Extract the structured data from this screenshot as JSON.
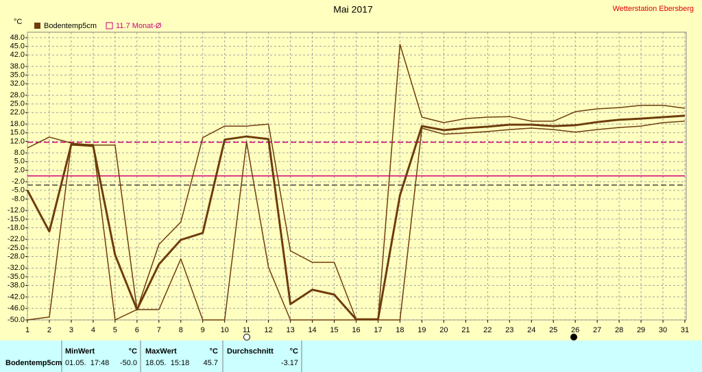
{
  "chart_data": {
    "type": "line",
    "title": "Mai 2017",
    "station": "Wetterstation Ebersberg",
    "y_label": "°C",
    "x": [
      1,
      2,
      3,
      4,
      5,
      6,
      7,
      8,
      9,
      10,
      11,
      12,
      13,
      14,
      15,
      16,
      17,
      18,
      19,
      20,
      21,
      22,
      23,
      24,
      25,
      26,
      27,
      28,
      29,
      30,
      31
    ],
    "xlim": [
      1,
      31
    ],
    "xticks": [
      1,
      2,
      3,
      4,
      5,
      6,
      7,
      8,
      9,
      10,
      11,
      12,
      13,
      14,
      15,
      16,
      17,
      18,
      19,
      20,
      21,
      22,
      23,
      24,
      25,
      26,
      27,
      28,
      29,
      30,
      31
    ],
    "ylim": [
      -50,
      48
    ],
    "yticks": [
      {
        "value": -50,
        "label": "-50.0"
      },
      {
        "value": -46,
        "label": "-46.0"
      },
      {
        "value": -42,
        "label": "-42.0"
      },
      {
        "value": -38,
        "label": "-38.0"
      },
      {
        "value": -35,
        "label": "-35.0"
      },
      {
        "value": -32,
        "label": "-32.0"
      },
      {
        "value": -28,
        "label": "-28.0"
      },
      {
        "value": -25,
        "label": "-25.0"
      },
      {
        "value": -22,
        "label": "-22.0"
      },
      {
        "value": -18,
        "label": "-18.0"
      },
      {
        "value": -15,
        "label": "-15.0"
      },
      {
        "value": -12,
        "label": "-12.0"
      },
      {
        "value": -8,
        "label": "-8.0"
      },
      {
        "value": -5,
        "label": "-5.0"
      },
      {
        "value": -2,
        "label": "-2.0"
      },
      {
        "value": 2,
        "label": "2.0"
      },
      {
        "value": 5,
        "label": "5.0"
      },
      {
        "value": 8,
        "label": "8.0"
      },
      {
        "value": 12,
        "label": "12.0"
      },
      {
        "value": 15,
        "label": "15.0"
      },
      {
        "value": 18,
        "label": "18.0"
      },
      {
        "value": 22,
        "label": "22.0"
      },
      {
        "value": 25,
        "label": "25.0"
      },
      {
        "value": 28,
        "label": "28.0"
      },
      {
        "value": 32,
        "label": "32.0"
      },
      {
        "value": 35,
        "label": "35.0"
      },
      {
        "value": 38,
        "label": "38.0"
      },
      {
        "value": 42,
        "label": "42.0"
      },
      {
        "value": 45,
        "label": "45.0"
      },
      {
        "value": 48,
        "label": "48.0"
      }
    ],
    "grid": true,
    "series": [
      {
        "name": "Bodentemp5cm",
        "color": "#6e3b0c",
        "line_width": 3,
        "values": [
          -5.0,
          -19.3,
          10.9,
          10.4,
          -27.4,
          -46.4,
          -30.7,
          -22.2,
          -19.8,
          12.6,
          13.7,
          12.8,
          -44.5,
          -39.5,
          -41.2,
          -49.8,
          -49.8,
          -6.7,
          17.3,
          15.9,
          16.6,
          17.1,
          17.8,
          17.8,
          17.3,
          17.6,
          18.7,
          19.5,
          19.9,
          20.4,
          20.9
        ]
      },
      {
        "color": "#6e3b0c",
        "line_width": 1.5,
        "values": [
          9.7,
          13.5,
          11.4,
          10.7,
          10.7,
          -46.4,
          -23.8,
          -16.0,
          13.3,
          17.3,
          17.3,
          18.0,
          -26.0,
          -30.0,
          -30.0,
          -49.8,
          -49.8,
          45.7,
          20.4,
          18.5,
          19.9,
          20.4,
          20.6,
          19.0,
          19.0,
          22.3,
          23.3,
          23.7,
          24.5,
          24.5,
          23.5
        ]
      },
      {
        "color": "#6e3b0c",
        "line_width": 1.5,
        "values": [
          -50.0,
          -49.0,
          10.9,
          10.9,
          -50.0,
          -46.4,
          -46.4,
          -28.8,
          -50.0,
          -50.0,
          11.8,
          -31.7,
          -50.0,
          -50.0,
          -50.0,
          -50.0,
          -50.0,
          -50.0,
          16.6,
          14.5,
          14.9,
          15.4,
          16.1,
          16.6,
          16.1,
          15.2,
          16.1,
          16.8,
          17.3,
          18.5,
          19.0
        ]
      }
    ],
    "hlines": [
      {
        "value": 11.7,
        "label": "11.7 Monat-Ø",
        "color": "#d0007a",
        "dash": true
      },
      {
        "value": 0,
        "color": "#d0007a",
        "dash": false
      },
      {
        "value": -3.17,
        "color": "#444444",
        "dash": true
      }
    ]
  },
  "stats": {
    "headers": [
      "MinWert",
      "°C",
      "MaxWert",
      "°C",
      "Durchschnitt",
      "°C"
    ],
    "rows": [
      [
        "Bodentemp5cm",
        "01.05.  17:48",
        "-50.0",
        "18.05.  15:18",
        "45.7",
        "-3.17"
      ]
    ]
  }
}
